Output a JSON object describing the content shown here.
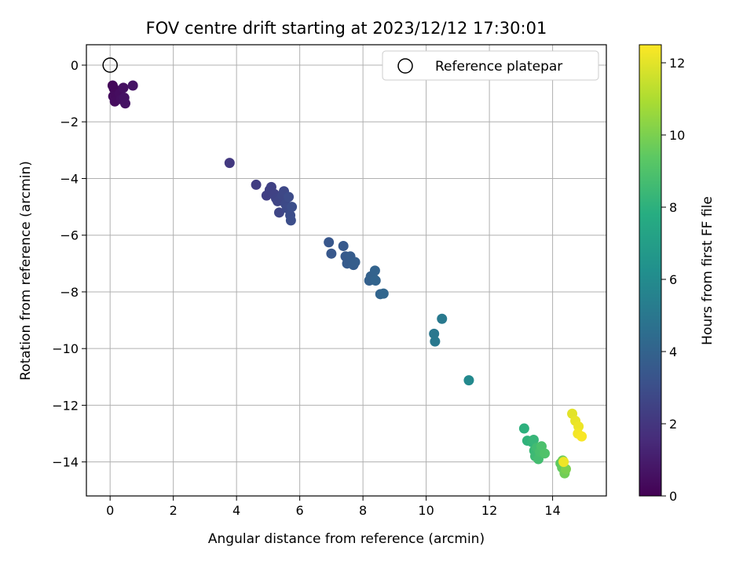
{
  "chart_data": {
    "type": "scatter",
    "title": "FOV centre drift starting at 2023/12/12 17:30:01",
    "xlabel": "Angular distance from reference (arcmin)",
    "ylabel": "Rotation from reference (arcmin)",
    "xlim": [
      -0.75,
      15.7
    ],
    "ylim": [
      -15.2,
      0.72
    ],
    "xticks": [
      0,
      2,
      4,
      6,
      8,
      10,
      12,
      14
    ],
    "yticks": [
      0,
      -2,
      -4,
      -6,
      -8,
      -10,
      -12,
      -14
    ],
    "grid": true,
    "legend": {
      "placement": "top-right",
      "entries": [
        "Reference platepar"
      ]
    },
    "reference_point": {
      "x": 0,
      "y": 0,
      "label": "Reference platepar"
    },
    "colorbar": {
      "label": "Hours from first FF file",
      "range": [
        0,
        12.5
      ],
      "ticks": [
        0,
        2,
        4,
        6,
        8,
        10,
        12
      ],
      "colormap": "viridis"
    },
    "points": [
      {
        "x": 0.08,
        "y": -0.72,
        "t": 0.2
      },
      {
        "x": 0.12,
        "y": -0.82,
        "t": 0.25
      },
      {
        "x": 0.18,
        "y": -1.0,
        "t": 0.3
      },
      {
        "x": 0.1,
        "y": -1.1,
        "t": 0.35
      },
      {
        "x": 0.15,
        "y": -1.28,
        "t": 0.4
      },
      {
        "x": 0.3,
        "y": -1.0,
        "t": 0.45
      },
      {
        "x": 0.35,
        "y": -1.2,
        "t": 0.5
      },
      {
        "x": 0.42,
        "y": -0.8,
        "t": 0.55
      },
      {
        "x": 0.45,
        "y": -1.15,
        "t": 0.6
      },
      {
        "x": 0.48,
        "y": -1.35,
        "t": 0.65
      },
      {
        "x": 0.72,
        "y": -0.72,
        "t": 0.7
      },
      {
        "x": 3.78,
        "y": -3.45,
        "t": 2.1
      },
      {
        "x": 4.62,
        "y": -4.22,
        "t": 2.3
      },
      {
        "x": 4.95,
        "y": -4.6,
        "t": 2.35
      },
      {
        "x": 5.05,
        "y": -4.4,
        "t": 2.4
      },
      {
        "x": 5.1,
        "y": -4.3,
        "t": 2.45
      },
      {
        "x": 5.2,
        "y": -4.55,
        "t": 2.5
      },
      {
        "x": 5.25,
        "y": -4.7,
        "t": 2.55
      },
      {
        "x": 5.3,
        "y": -4.8,
        "t": 2.6
      },
      {
        "x": 5.35,
        "y": -5.2,
        "t": 2.65
      },
      {
        "x": 5.45,
        "y": -4.6,
        "t": 2.7
      },
      {
        "x": 5.5,
        "y": -4.45,
        "t": 2.75
      },
      {
        "x": 5.55,
        "y": -4.9,
        "t": 2.8
      },
      {
        "x": 5.6,
        "y": -5.05,
        "t": 2.85
      },
      {
        "x": 5.65,
        "y": -4.65,
        "t": 2.9
      },
      {
        "x": 5.7,
        "y": -5.3,
        "t": 2.95
      },
      {
        "x": 5.72,
        "y": -5.48,
        "t": 3.0
      },
      {
        "x": 5.75,
        "y": -5.0,
        "t": 3.0
      },
      {
        "x": 6.92,
        "y": -6.25,
        "t": 3.4
      },
      {
        "x": 7.0,
        "y": -6.65,
        "t": 3.45
      },
      {
        "x": 7.38,
        "y": -6.38,
        "t": 3.5
      },
      {
        "x": 7.45,
        "y": -6.75,
        "t": 3.55
      },
      {
        "x": 7.5,
        "y": -7.0,
        "t": 3.6
      },
      {
        "x": 7.6,
        "y": -6.75,
        "t": 3.65
      },
      {
        "x": 7.7,
        "y": -7.05,
        "t": 3.7
      },
      {
        "x": 7.75,
        "y": -6.95,
        "t": 3.75
      },
      {
        "x": 8.2,
        "y": -7.6,
        "t": 3.85
      },
      {
        "x": 8.25,
        "y": -7.45,
        "t": 3.9
      },
      {
        "x": 8.35,
        "y": -7.55,
        "t": 3.95
      },
      {
        "x": 8.38,
        "y": -7.25,
        "t": 4.0
      },
      {
        "x": 8.4,
        "y": -7.6,
        "t": 4.05
      },
      {
        "x": 8.55,
        "y": -8.08,
        "t": 4.1
      },
      {
        "x": 8.65,
        "y": -8.06,
        "t": 4.15
      },
      {
        "x": 10.25,
        "y": -9.48,
        "t": 5.0
      },
      {
        "x": 10.28,
        "y": -9.75,
        "t": 5.05
      },
      {
        "x": 10.5,
        "y": -8.95,
        "t": 5.1
      },
      {
        "x": 11.35,
        "y": -11.12,
        "t": 5.9
      },
      {
        "x": 13.1,
        "y": -12.82,
        "t": 8.0
      },
      {
        "x": 13.2,
        "y": -13.25,
        "t": 8.1
      },
      {
        "x": 13.35,
        "y": -13.3,
        "t": 8.2
      },
      {
        "x": 13.4,
        "y": -13.22,
        "t": 8.3
      },
      {
        "x": 13.42,
        "y": -13.6,
        "t": 8.4
      },
      {
        "x": 13.45,
        "y": -13.8,
        "t": 8.5
      },
      {
        "x": 13.5,
        "y": -13.5,
        "t": 8.6
      },
      {
        "x": 13.55,
        "y": -13.9,
        "t": 8.7
      },
      {
        "x": 13.6,
        "y": -13.65,
        "t": 8.8
      },
      {
        "x": 13.65,
        "y": -13.45,
        "t": 8.9
      },
      {
        "x": 13.75,
        "y": -13.7,
        "t": 9.0
      },
      {
        "x": 14.25,
        "y": -14.05,
        "t": 9.4
      },
      {
        "x": 14.3,
        "y": -14.2,
        "t": 9.5
      },
      {
        "x": 14.32,
        "y": -13.95,
        "t": 9.7
      },
      {
        "x": 14.38,
        "y": -14.4,
        "t": 9.8
      },
      {
        "x": 14.42,
        "y": -14.25,
        "t": 10.0
      },
      {
        "x": 14.35,
        "y": -14.0,
        "t": 12.2
      },
      {
        "x": 14.62,
        "y": -12.3,
        "t": 12.0
      },
      {
        "x": 14.72,
        "y": -12.55,
        "t": 12.1
      },
      {
        "x": 14.82,
        "y": -12.75,
        "t": 12.2
      },
      {
        "x": 14.8,
        "y": -13.0,
        "t": 12.3
      },
      {
        "x": 14.92,
        "y": -13.1,
        "t": 12.4
      }
    ]
  }
}
